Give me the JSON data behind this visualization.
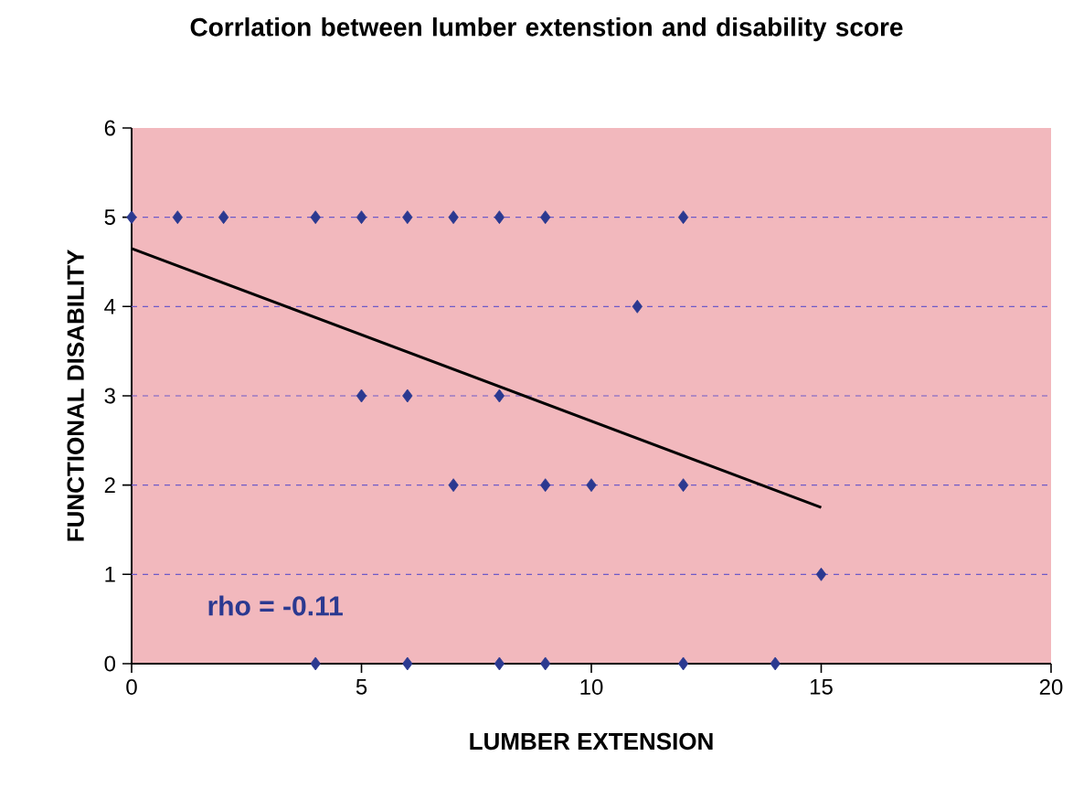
{
  "chart_data": {
    "type": "scatter",
    "title": "Corrlation between lumber extenstion and disability score",
    "xlabel": "LUMBER EXTENSION",
    "ylabel": "FUNCTIONAL DISABILITY",
    "xlim": [
      0,
      20
    ],
    "ylim": [
      0,
      6
    ],
    "xticks": [
      0,
      5,
      10,
      15,
      20
    ],
    "yticks": [
      0,
      1,
      2,
      3,
      4,
      5,
      6
    ],
    "grid": "y",
    "annotations": [
      "rho = -0.11"
    ],
    "series": [
      {
        "color": "#2b3990",
        "marker": "diamond",
        "x": [
          0,
          1,
          2,
          4,
          5,
          6,
          7,
          8,
          9,
          12,
          11,
          5,
          6,
          8,
          7,
          9,
          10,
          12,
          15,
          4,
          6,
          8,
          9,
          12,
          14
        ],
        "values": [
          5,
          5,
          5,
          5,
          5,
          5,
          5,
          5,
          5,
          5,
          4,
          3,
          3,
          3,
          2,
          2,
          2,
          2,
          1,
          0,
          0,
          0,
          0,
          0,
          0
        ]
      },
      {
        "type": "line",
        "color": "#000000",
        "marker": "none",
        "line_style": "solid",
        "x": [
          0,
          15
        ],
        "values": [
          4.65,
          1.75
        ]
      }
    ]
  }
}
